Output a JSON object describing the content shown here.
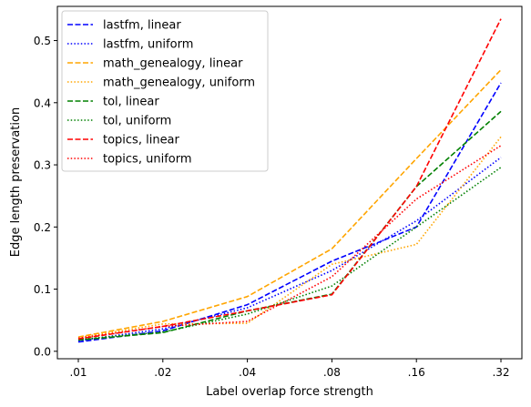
{
  "chart_data": {
    "type": "line",
    "title": "",
    "xlabel": "Label overlap force strength",
    "ylabel": "Edge length preservation",
    "categories": [
      ".01",
      ".02",
      ".04",
      ".08",
      ".16",
      ".32"
    ],
    "ylim": [
      -0.012,
      0.555
    ],
    "yticks": [
      0.0,
      0.1,
      0.2,
      0.3,
      0.4,
      0.5
    ],
    "ytick_labels": [
      "0.0",
      "0.1",
      "0.2",
      "0.3",
      "0.4",
      "0.5"
    ],
    "grid": false,
    "legend_position": "upper-left",
    "series": [
      {
        "name": "lastfm, linear",
        "color": "#0000ff",
        "style": "dashed",
        "values": [
          0.015,
          0.033,
          0.075,
          0.145,
          0.2,
          0.432
        ]
      },
      {
        "name": "lastfm, uniform",
        "color": "#0000ff",
        "style": "dotted",
        "values": [
          0.017,
          0.036,
          0.07,
          0.13,
          0.21,
          0.312
        ]
      },
      {
        "name": "math_genealogy, linear",
        "color": "#ffa500",
        "style": "dashed",
        "values": [
          0.023,
          0.048,
          0.088,
          0.165,
          0.31,
          0.453
        ]
      },
      {
        "name": "math_genealogy, uniform",
        "color": "#ffa500",
        "style": "dotted",
        "values": [
          0.022,
          0.044,
          0.045,
          0.14,
          0.172,
          0.345
        ]
      },
      {
        "name": "tol, linear",
        "color": "#008000",
        "style": "dashed",
        "values": [
          0.018,
          0.03,
          0.065,
          0.092,
          0.265,
          0.386
        ]
      },
      {
        "name": "tol, uniform",
        "color": "#008000",
        "style": "dotted",
        "values": [
          0.019,
          0.031,
          0.06,
          0.105,
          0.2,
          0.296
        ]
      },
      {
        "name": "topics, linear",
        "color": "#ff0000",
        "style": "dashed",
        "values": [
          0.02,
          0.04,
          0.065,
          0.091,
          0.265,
          0.535
        ]
      },
      {
        "name": "topics, uniform",
        "color": "#ff0000",
        "style": "dotted",
        "values": [
          0.021,
          0.04,
          0.048,
          0.12,
          0.245,
          0.331
        ]
      }
    ]
  }
}
